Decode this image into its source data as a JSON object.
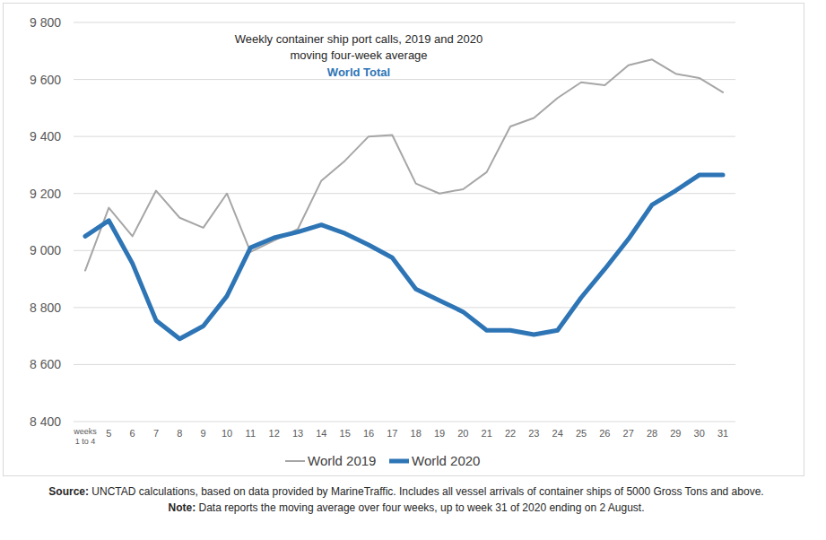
{
  "chart_data": {
    "type": "line",
    "title": "Weekly container ship port calls, 2019 and 2020",
    "subtitle": "moving four-week average",
    "highlight": "World Total",
    "source_label": "Source:",
    "source": "UNCTAD calculations, based on data provided by MarineTraffic. Includes all vessel arrivals of container ships of 5000 Gross Tons and above.",
    "note_label": "Note:",
    "note": "Data reports the moving average over four weeks, up to week 31 of 2020 ending on 2 August.",
    "categories": [
      "weeks\n1 to 4",
      "5",
      "6",
      "7",
      "8",
      "9",
      "10",
      "11",
      "12",
      "13",
      "14",
      "15",
      "16",
      "17",
      "18",
      "19",
      "20",
      "21",
      "22",
      "23",
      "24",
      "25",
      "26",
      "27",
      "28",
      "29",
      "30",
      "31"
    ],
    "series": [
      {
        "name": "World 2019",
        "color": "#a6a6a6",
        "line_style": "thin",
        "values": [
          8930,
          9150,
          9050,
          9210,
          9115,
          9080,
          9200,
          8995,
          9035,
          9075,
          9245,
          9315,
          9400,
          9405,
          9235,
          9200,
          9215,
          9275,
          9435,
          9465,
          9535,
          9590,
          9580,
          9650,
          9670,
          9620,
          9605,
          9555
        ]
      },
      {
        "name": "World 2020",
        "color": "#2e75b6",
        "line_style": "thick",
        "values": [
          9050,
          9105,
          8955,
          8755,
          8690,
          8735,
          8840,
          9010,
          9045,
          9065,
          9090,
          9060,
          9020,
          8975,
          8865,
          8825,
          8785,
          8720,
          8720,
          8705,
          8720,
          8835,
          8935,
          9040,
          9160,
          9210,
          9265,
          9265
        ]
      }
    ],
    "ylim": [
      8400,
      9800
    ],
    "yticks": [
      {
        "value": 8400,
        "label": "8 400"
      },
      {
        "value": 8600,
        "label": "8 600"
      },
      {
        "value": 8800,
        "label": "8 800"
      },
      {
        "value": 9000,
        "label": "9 000"
      },
      {
        "value": 9200,
        "label": "9 200"
      },
      {
        "value": 9400,
        "label": "9 400"
      },
      {
        "value": 9600,
        "label": "9 600"
      },
      {
        "value": 9800,
        "label": "9 800"
      }
    ],
    "grid": true,
    "legend": "bottom"
  }
}
